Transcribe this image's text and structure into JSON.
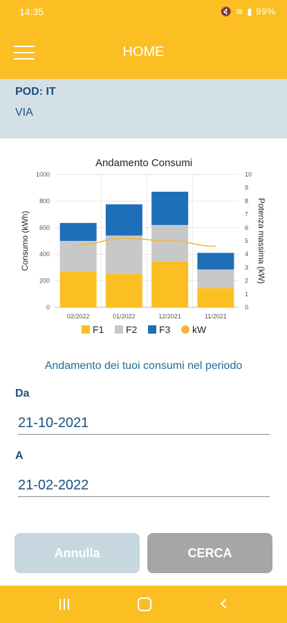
{
  "status_bar": {
    "time": "14:35",
    "icons": [
      "mute-icon",
      "wifi-icon",
      "signal-icon"
    ],
    "battery": "99%"
  },
  "header": {
    "title": "HOME",
    "menu_icon": "hamburger-menu-icon"
  },
  "pod": {
    "label": "POD: IT",
    "address": "VIA"
  },
  "chart_data": {
    "type": "bar",
    "title": "Andamento Consumi",
    "ylabel": "Consumo (kWh)",
    "y2label": "Potenza massima (kW)",
    "categories": [
      "02/2022",
      "01/2022",
      "12/2021",
      "11/2021"
    ],
    "ylim": [
      0,
      1000
    ],
    "y_ticks": [
      0,
      200,
      400,
      600,
      800,
      1000
    ],
    "y2lim": [
      0,
      10
    ],
    "y2_ticks": [
      0,
      1,
      2,
      3,
      4,
      5,
      6,
      7,
      8,
      9,
      10
    ],
    "stacked": true,
    "series": [
      {
        "name": "F1",
        "values": [
          270,
          250,
          345,
          145
        ],
        "color": "#fbbf24"
      },
      {
        "name": "F2",
        "values": [
          230,
          290,
          275,
          140
        ],
        "color": "#c8c8c8"
      },
      {
        "name": "F3",
        "values": [
          135,
          235,
          250,
          125
        ],
        "color": "#1f6fb8"
      },
      {
        "name": "kW",
        "type": "line",
        "axis": "right",
        "values": [
          4.7,
          5.2,
          5.0,
          4.6
        ],
        "color": "#f4b73c"
      }
    ],
    "legend_position": "bottom",
    "grid": true
  },
  "period_text": "Andamento dei tuoi consumi nel periodo",
  "form": {
    "from_label": "Da",
    "from_value": "21-10-2021",
    "to_label": "A",
    "to_value": "21-02-2022"
  },
  "buttons": {
    "cancel": "Annulla",
    "search": "CERCA"
  },
  "nav_bar": {
    "icons": [
      "recent-apps-icon",
      "home-icon",
      "back-icon"
    ]
  }
}
